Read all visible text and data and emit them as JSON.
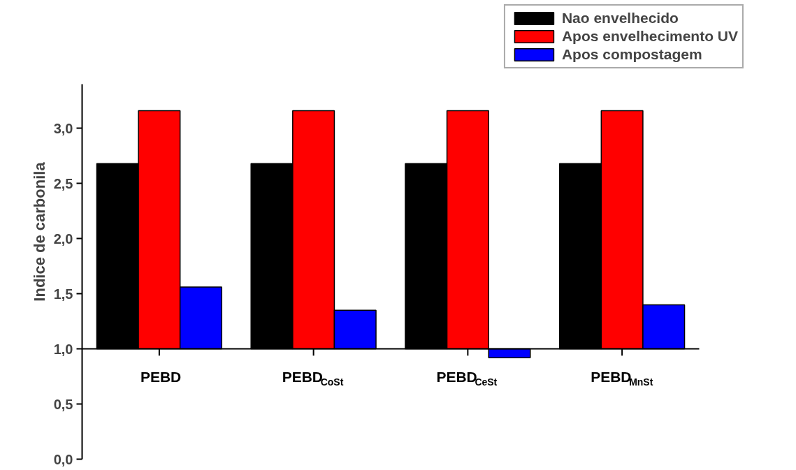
{
  "chart_data": {
    "type": "bar",
    "ylabel": "Indice de carbonila",
    "categories": [
      "PEBD",
      "PEBD$_{CoSt}$",
      "PEBD$_{CeSt}$",
      "PEBD$_{MnSt}$"
    ],
    "series": [
      {
        "name": "Nao envelhecido",
        "color": "#000000",
        "base": [
          1.0,
          1.0,
          1.0,
          1.0
        ],
        "values": [
          1.68,
          1.68,
          1.68,
          1.68
        ]
      },
      {
        "name": "Apos envelhecimento UV",
        "color": "#ff0000",
        "base": [
          1.0,
          1.0,
          1.0,
          1.0
        ],
        "values": [
          2.16,
          2.16,
          2.16,
          2.16
        ]
      },
      {
        "name": "Apos compostagem",
        "color": "#0000ff",
        "base": [
          1.0,
          1.0,
          1.0,
          1.0
        ],
        "values": [
          0.56,
          0.35,
          -0.08,
          0.4
        ]
      }
    ],
    "ylim": [
      0,
      3.4
    ],
    "yticks": [
      {
        "value": 0,
        "label": "0,0"
      },
      {
        "value": 0.5,
        "label": "0,5"
      },
      {
        "value": 1.0,
        "label": "1,0"
      },
      {
        "value": 1.5,
        "label": "1,5"
      },
      {
        "value": 2.0,
        "label": "2,0"
      },
      {
        "value": 2.5,
        "label": "2,5"
      },
      {
        "value": 3.0,
        "label": "3,0"
      }
    ],
    "grid": false,
    "legend": "top right"
  }
}
